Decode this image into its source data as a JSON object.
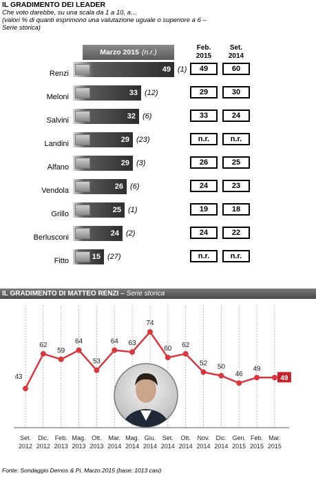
{
  "header": {
    "title": "IL GRADIMENTO DEI LEADER",
    "subtitle_lines": [
      "Che voto darebbe, su una scala da 1 a 10, a…",
      "(valori % di quanti esprimono una valutazione uguale o superiore a 6 –",
      "Serie storica)"
    ]
  },
  "chart_data": [
    {
      "type": "bar",
      "column_header": "Marzo 2015",
      "column_header_note": "(n.r.)",
      "comparison_headers": [
        [
          "Feb.",
          "2015"
        ],
        [
          "Set.",
          "2014"
        ]
      ],
      "categories": [
        "Renzi",
        "Meloni",
        "Salvini",
        "Landini",
        "Alfano",
        "Vendola",
        "Grillo",
        "Berlusconi",
        "Fitto"
      ],
      "values": [
        49,
        33,
        32,
        29,
        29,
        26,
        25,
        24,
        15
      ],
      "ranks": [
        "(1)",
        "(12)",
        "(6)",
        "(23)",
        "(3)",
        "(6)",
        "(1)",
        "(2)",
        "(27)"
      ],
      "feb_2015": [
        "49",
        "29",
        "33",
        "n.r.",
        "26",
        "24",
        "19",
        "24",
        "n.r."
      ],
      "set_2014": [
        "60",
        "30",
        "24",
        "n.r.",
        "25",
        "23",
        "18",
        "22",
        "n.r."
      ]
    },
    {
      "type": "line",
      "title": "IL GRADIMENTO DI MATTEO RENZI",
      "subtitle": "Serie storica",
      "x": [
        [
          "Set.",
          "2012"
        ],
        [
          "Dic.",
          "2012"
        ],
        [
          "Feb.",
          "2013"
        ],
        [
          "Mag.",
          "2013"
        ],
        [
          "Ott.",
          "2013"
        ],
        [
          "Mar.",
          "2014"
        ],
        [
          "Mag.",
          "2014"
        ],
        [
          "Giu.",
          "2014"
        ],
        [
          "Set.",
          "2014"
        ],
        [
          "Ott.",
          "2014"
        ],
        [
          "Nov.",
          "2014"
        ],
        [
          "Dic.",
          "2014"
        ],
        [
          "Gen.",
          "2015"
        ],
        [
          "Feb.",
          "2015"
        ],
        [
          "Mar.",
          "2015"
        ]
      ],
      "values": [
        43,
        62,
        59,
        64,
        53,
        64,
        63,
        74,
        60,
        62,
        52,
        50,
        46,
        49,
        49
      ],
      "line_color": "#d9363e",
      "highlight_color": "#c8232b"
    }
  ],
  "footer": "Fonte: Sondaggio Demos & Pi, Marzo 2015 (base: 1013 casi)"
}
